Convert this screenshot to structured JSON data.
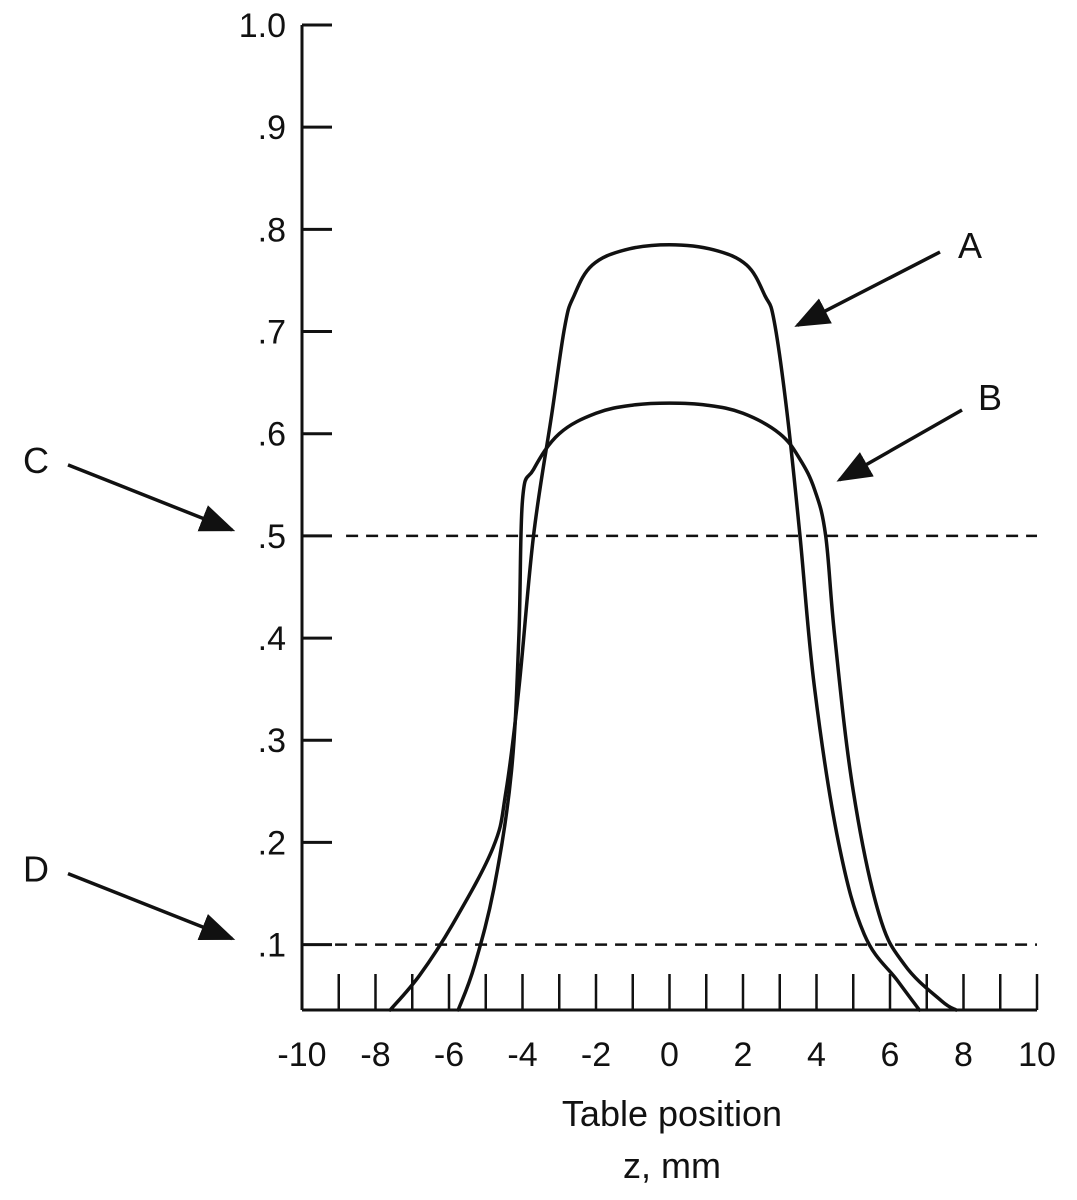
{
  "chart_data": {
    "type": "line",
    "title": "",
    "xlabel": "Table position",
    "xlabel_line2": "z, mm",
    "ylabel": "",
    "xlim": [
      -10,
      10
    ],
    "ylim": [
      0.036,
      1.0
    ],
    "x_ticks": [
      -10,
      -8,
      -6,
      -4,
      -2,
      0,
      2,
      4,
      6,
      8,
      10
    ],
    "x_tick_labels": [
      "-10",
      "-8",
      "-6",
      "-4",
      "-2",
      "0",
      "2",
      "4",
      "6",
      "8",
      "10"
    ],
    "y_ticks": [
      0.1,
      0.2,
      0.3,
      0.4,
      0.5,
      0.6,
      0.7,
      0.8,
      0.9,
      1.0
    ],
    "y_tick_labels": [
      ".1",
      ".2",
      ".3",
      ".4",
      ".5",
      ".6",
      ".7",
      ".8",
      ".9",
      "1.0"
    ],
    "x_minor_step": 1,
    "grid": false,
    "series": [
      {
        "name": "A",
        "color": "#111111",
        "x": [
          -7.6,
          -6.8,
          -5.9,
          -4.8,
          -4.45,
          -4.1,
          -3.7,
          -3.2,
          -2.85,
          -2.6,
          -2.1,
          -1.2,
          0,
          1.2,
          2.1,
          2.6,
          2.85,
          3.2,
          3.55,
          3.95,
          4.6,
          5.3,
          6.2,
          6.8
        ],
        "y": [
          0.036,
          0.07,
          0.12,
          0.195,
          0.25,
          0.35,
          0.5,
          0.62,
          0.705,
          0.735,
          0.765,
          0.78,
          0.785,
          0.78,
          0.765,
          0.735,
          0.71,
          0.62,
          0.5,
          0.35,
          0.2,
          0.11,
          0.065,
          0.036
        ]
      },
      {
        "name": "B",
        "color": "#111111",
        "x": [
          -5.75,
          -5.3,
          -4.75,
          -4.3,
          -4.1,
          -4.0,
          -3.7,
          -3.0,
          -2.0,
          -1.0,
          0,
          1.0,
          2.0,
          3.0,
          3.55,
          3.95,
          4.25,
          4.5,
          5.0,
          5.7,
          6.4,
          7.4,
          7.8
        ],
        "y": [
          0.036,
          0.08,
          0.16,
          0.27,
          0.4,
          0.535,
          0.565,
          0.6,
          0.62,
          0.628,
          0.63,
          0.628,
          0.62,
          0.6,
          0.575,
          0.545,
          0.5,
          0.4,
          0.25,
          0.13,
          0.08,
          0.045,
          0.036
        ]
      }
    ],
    "reference_lines": [
      {
        "label": "C",
        "y": 0.5,
        "style": "dashed",
        "x_start": -8.8,
        "x_end": 10
      },
      {
        "label": "D",
        "y": 0.1,
        "style": "dashed",
        "x_start": -9.1,
        "x_end": 10
      }
    ],
    "annotations": [
      {
        "text": "A",
        "target_series": "A",
        "target_x": 3.1,
        "target_y": 0.71,
        "position": "upper-right"
      },
      {
        "text": "B",
        "target_series": "B",
        "target_x": 4.3,
        "target_y": 0.545,
        "position": "right"
      },
      {
        "text": "C",
        "target_line": "C",
        "target_y": 0.5,
        "position": "left-of-axis"
      },
      {
        "text": "D",
        "target_line": "D",
        "target_y": 0.1,
        "position": "left-of-axis"
      }
    ]
  }
}
